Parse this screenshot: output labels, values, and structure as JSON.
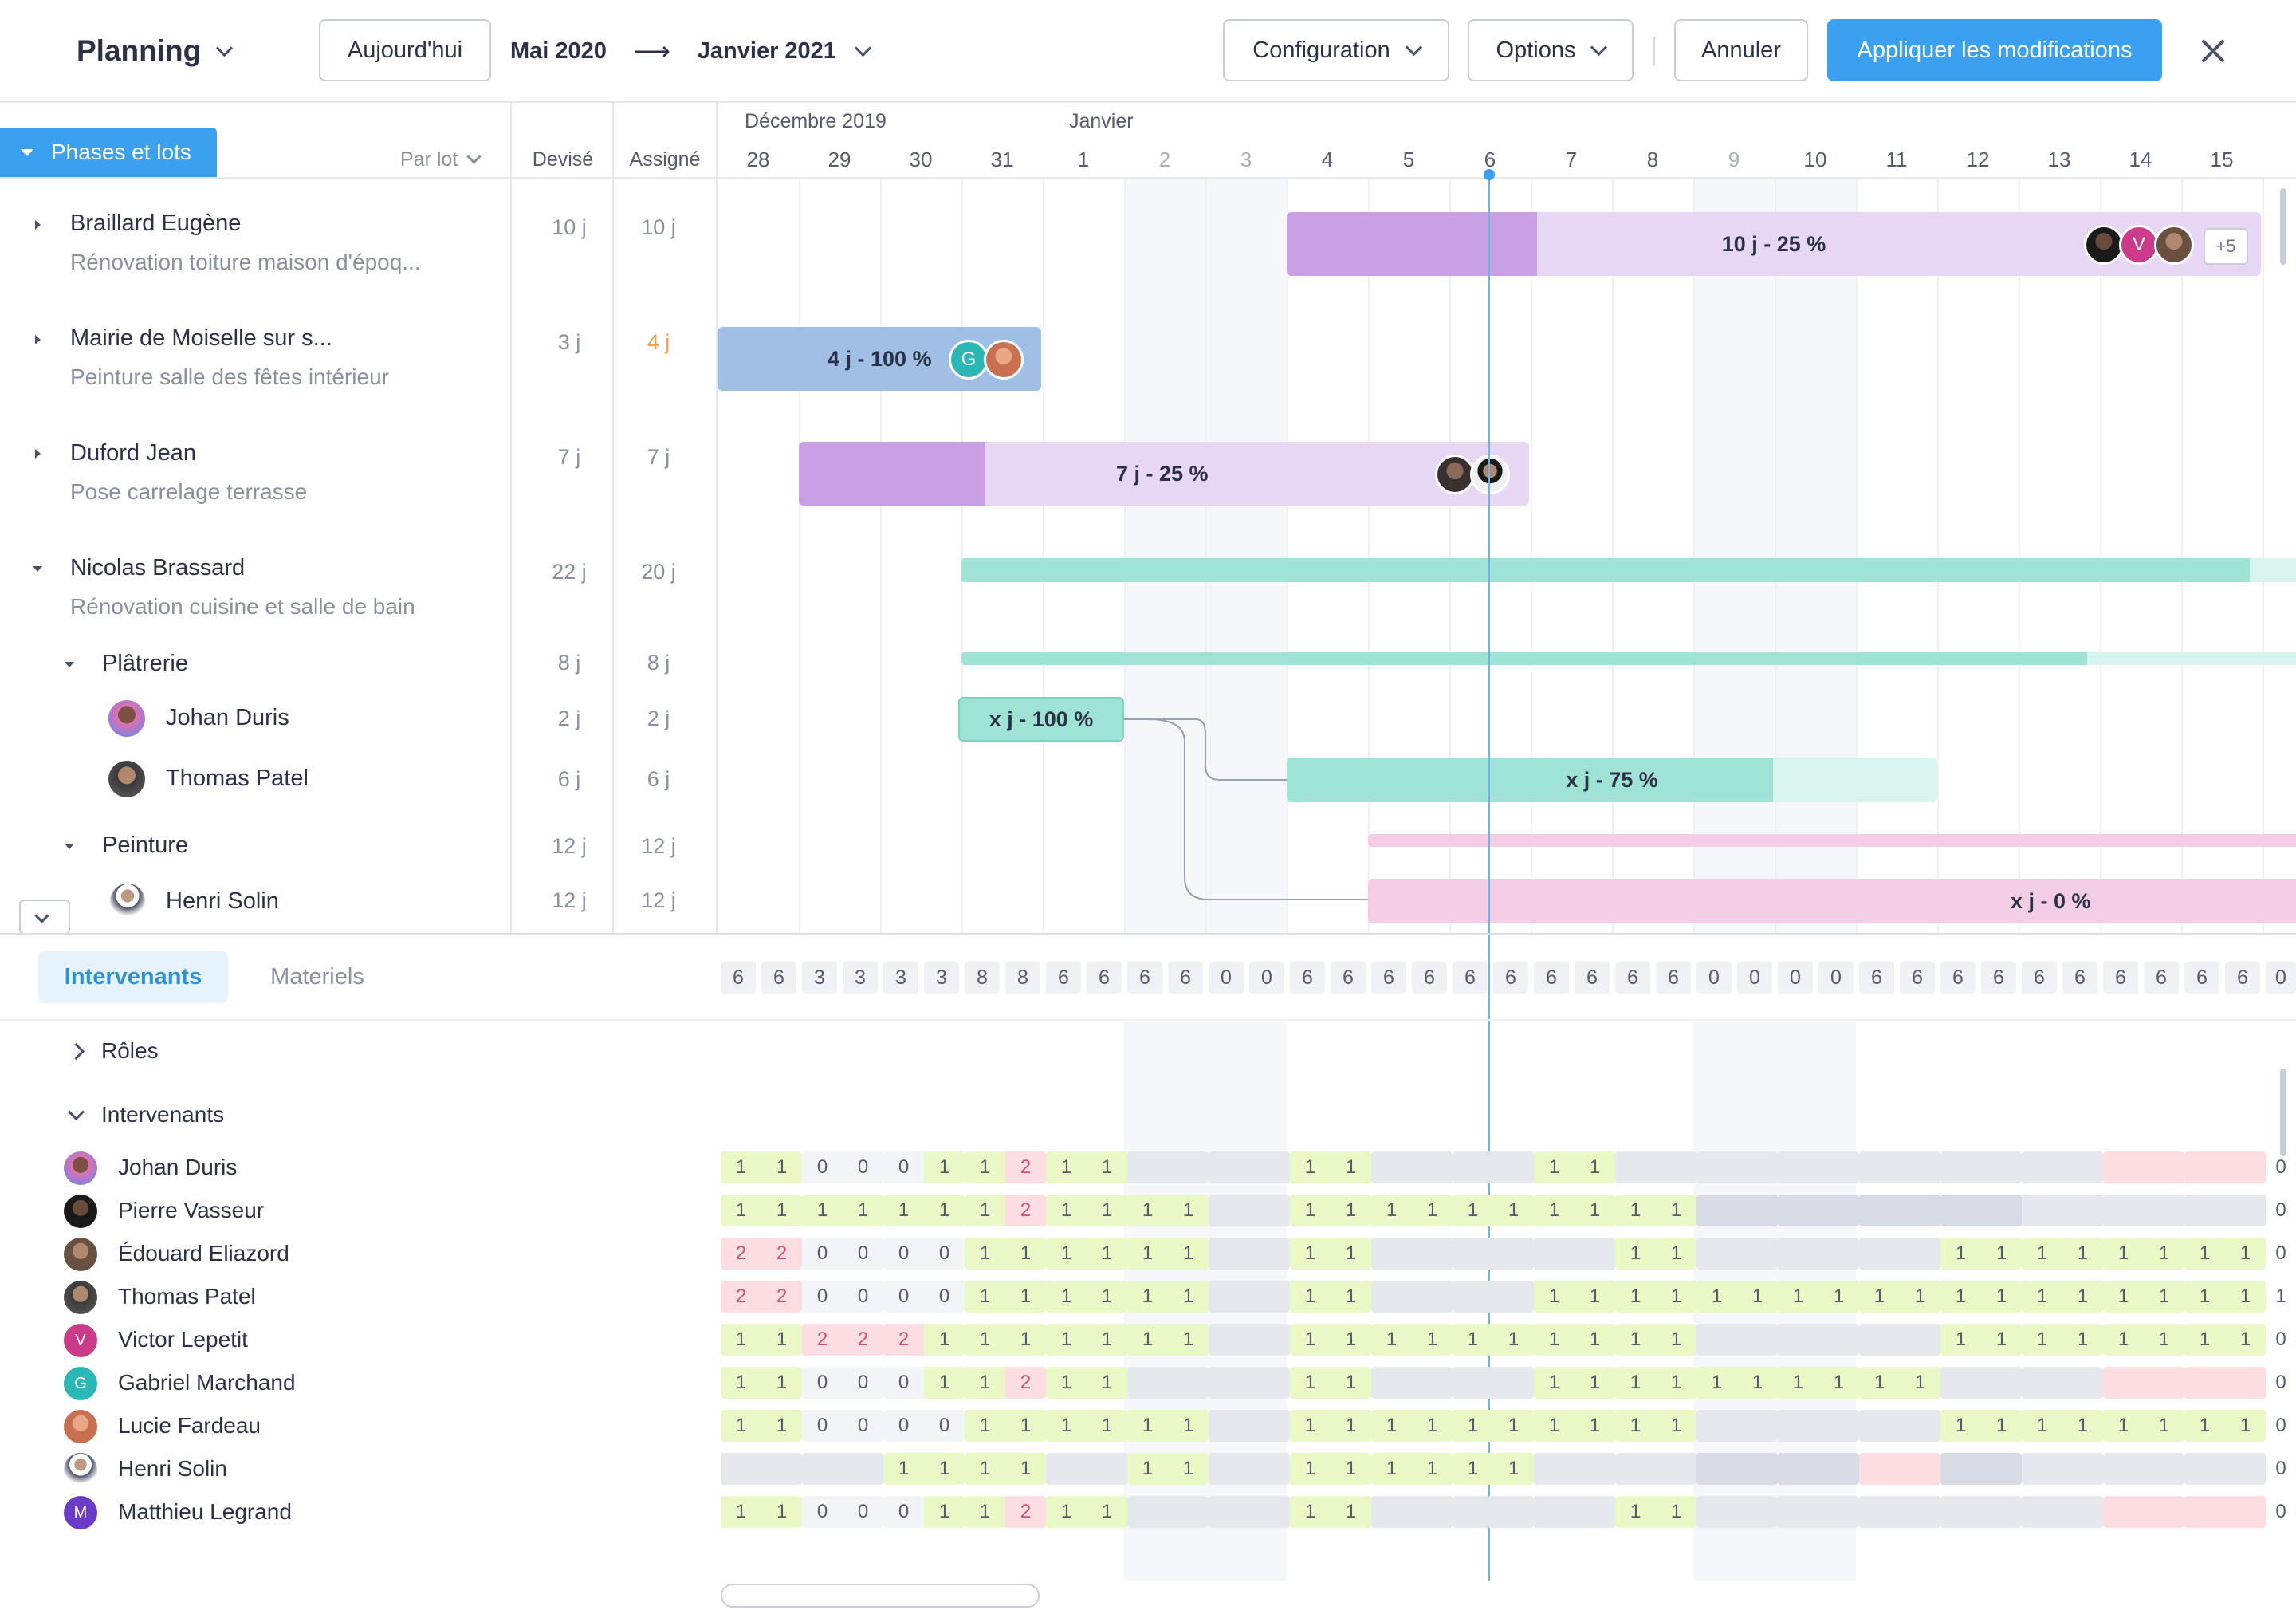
{
  "toolbar": {
    "title": "Planning",
    "today_label": "Aujourd'hui",
    "range_start": "Mai 2020",
    "range_arrow": "⟶",
    "range_end": "Janvier 2021",
    "configuration_label": "Configuration",
    "options_label": "Options",
    "cancel_label": "Annuler",
    "apply_label": "Appliquer les modifications",
    "close_icon": "close-icon"
  },
  "left_header": {
    "phases_button": "Phases et lots",
    "group_by": "Par lot",
    "col_estimated": "Devisé",
    "col_assigned": "Assigné"
  },
  "timeline": {
    "month_1": "Décembre 2019",
    "month_2": "Janvier",
    "days": [
      "28",
      "29",
      "30",
      "31",
      "1",
      "2",
      "3",
      "4",
      "5",
      "6",
      "7",
      "8",
      "9",
      "10",
      "11",
      "12",
      "13",
      "14",
      "15"
    ]
  },
  "rows": [
    {
      "title": "Braillard Eugène",
      "subtitle": "Rénovation toiture maison d'époq...",
      "estimated": "10 j",
      "assigned": "10 j"
    },
    {
      "title": "Mairie de Moiselle sur s...",
      "subtitle": "Peinture salle des fêtes intérieur",
      "estimated": "3 j",
      "assigned": "4 j"
    },
    {
      "title": "Duford Jean",
      "subtitle": "Pose carrelage terrasse",
      "estimated": "7 j",
      "assigned": "7 j"
    },
    {
      "title": "Nicolas Brassard",
      "subtitle": "Rénovation cuisine et salle de bain",
      "estimated": "22 j",
      "assigned": "20 j"
    }
  ],
  "subrows": [
    {
      "title": "Plâtrerie",
      "estimated": "8 j",
      "assigned": "8 j"
    },
    {
      "title": "Johan Duris",
      "estimated": "2 j",
      "assigned": "2 j"
    },
    {
      "title": "Thomas Patel",
      "estimated": "6 j",
      "assigned": "6 j"
    },
    {
      "title": "Peinture",
      "estimated": "12 j",
      "assigned": "12 j"
    },
    {
      "title": "Henri Solin",
      "estimated": "12 j",
      "assigned": "12 j"
    }
  ],
  "bars": {
    "braillard": "10 j - 25 %",
    "braillard_more": "+5",
    "braillard_avatar_initial": "V",
    "mairie": "4 j - 100 %",
    "mairie_avatar_initial": "G",
    "duford": "7 j - 25 %",
    "johan": "x j - 100 %",
    "thomas": "x j - 75 %",
    "henri": "x j - 0 %"
  },
  "bottom": {
    "tab_workers": "Intervenants",
    "tab_materials": "Materiels",
    "roles_label": "Rôles",
    "workers_group_label": "Intervenants",
    "totals": [
      "6",
      "6",
      "3",
      "3",
      "3",
      "3",
      "8",
      "8",
      "6",
      "6",
      "6",
      "6",
      "0",
      "0",
      "6",
      "6",
      "6",
      "6",
      "6",
      "6",
      "6",
      "6",
      "6",
      "6",
      "0",
      "0",
      "0",
      "0",
      "6",
      "6",
      "6",
      "6",
      "6",
      "6",
      "6",
      "6",
      "6",
      "6",
      "0"
    ],
    "workers": [
      {
        "name": "Johan Duris",
        "initial": ""
      },
      {
        "name": "Pierre Vasseur",
        "initial": ""
      },
      {
        "name": "Édouard Eliazord",
        "initial": ""
      },
      {
        "name": "Thomas Patel",
        "initial": ""
      },
      {
        "name": "Victor Lepetit",
        "initial": "V"
      },
      {
        "name": "Gabriel Marchand",
        "initial": "G"
      },
      {
        "name": "Lucie Fardeau",
        "initial": ""
      },
      {
        "name": "Henri Solin",
        "initial": ""
      },
      {
        "name": "Matthieu Legrand",
        "initial": "M"
      }
    ],
    "grid": [
      [
        "1",
        "1",
        "0",
        "0",
        "0",
        "1",
        "1",
        "2",
        "1",
        "1",
        "",
        "",
        "",
        "",
        "1",
        "1",
        "",
        "",
        "",
        "",
        "1",
        "1",
        "",
        "",
        "",
        "",
        "",
        "",
        "",
        "",
        "",
        "",
        "",
        "",
        "",
        "",
        "",
        "",
        "0"
      ],
      [
        "1",
        "1",
        "1",
        "1",
        "1",
        "1",
        "1",
        "2",
        "1",
        "1",
        "1",
        "1",
        "",
        "",
        "1",
        "1",
        "1",
        "1",
        "1",
        "1",
        "1",
        "1",
        "1",
        "1",
        "",
        "",
        "",
        "",
        "",
        "",
        "",
        "",
        "",
        "",
        "",
        "",
        "",
        "",
        "0"
      ],
      [
        "2",
        "2",
        "0",
        "0",
        "0",
        "0",
        "1",
        "1",
        "1",
        "1",
        "1",
        "1",
        "",
        "",
        "1",
        "1",
        "",
        "",
        "",
        "",
        "",
        "",
        "1",
        "1",
        "",
        "",
        "",
        "",
        "",
        "",
        "1",
        "1",
        "1",
        "1",
        "1",
        "1",
        "1",
        "1",
        "0"
      ],
      [
        "2",
        "2",
        "0",
        "0",
        "0",
        "0",
        "1",
        "1",
        "1",
        "1",
        "1",
        "1",
        "",
        "",
        "1",
        "1",
        "",
        "",
        "",
        "",
        "1",
        "1",
        "1",
        "1",
        "1",
        "1",
        "1",
        "1",
        "1",
        "1",
        "1",
        "1",
        "1",
        "1",
        "1",
        "1",
        "1",
        "1",
        "1"
      ],
      [
        "1",
        "1",
        "2",
        "2",
        "2",
        "1",
        "1",
        "1",
        "1",
        "1",
        "1",
        "1",
        "",
        "",
        "1",
        "1",
        "1",
        "1",
        "1",
        "1",
        "1",
        "1",
        "1",
        "1",
        "",
        "",
        "",
        "",
        "",
        "",
        "1",
        "1",
        "1",
        "1",
        "1",
        "1",
        "1",
        "1",
        "0"
      ],
      [
        "1",
        "1",
        "0",
        "0",
        "0",
        "1",
        "1",
        "2",
        "1",
        "1",
        "",
        "",
        "",
        "",
        "1",
        "1",
        "",
        "",
        "",
        "",
        "1",
        "1",
        "1",
        "1",
        "1",
        "1",
        "1",
        "1",
        "1",
        "1",
        "",
        "",
        "",
        "",
        "",
        "",
        "",
        "",
        "0"
      ],
      [
        "1",
        "1",
        "0",
        "0",
        "0",
        "0",
        "1",
        "1",
        "1",
        "1",
        "1",
        "1",
        "",
        "",
        "1",
        "1",
        "1",
        "1",
        "1",
        "1",
        "1",
        "1",
        "1",
        "1",
        "",
        "",
        "",
        "",
        "",
        "",
        "1",
        "1",
        "1",
        "1",
        "1",
        "1",
        "1",
        "1",
        "0"
      ],
      [
        "",
        "",
        "",
        "",
        "1",
        "1",
        "1",
        "1",
        "",
        "",
        "1",
        "1",
        "",
        "",
        "1",
        "1",
        "1",
        "1",
        "1",
        "1",
        "",
        "",
        "",
        "",
        "",
        "",
        "",
        "",
        "",
        "",
        "",
        "",
        "",
        "",
        "",
        "",
        "",
        "",
        "0"
      ],
      [
        "1",
        "1",
        "0",
        "0",
        "0",
        "1",
        "1",
        "2",
        "1",
        "1",
        "",
        "",
        "",
        "",
        "1",
        "1",
        "",
        "",
        "",
        "",
        "",
        "",
        "1",
        "1",
        "",
        "",
        "",
        "",
        "",
        "",
        "",
        "",
        "",
        "",
        "",
        "",
        "",
        "",
        "0"
      ]
    ]
  },
  "colors": {
    "primary": "#3ba0f0",
    "purple_dark": "#c9a0e4",
    "purple_light": "#e8d7f4",
    "blue_bar": "#a1bfe4",
    "teal": "#9fe3d5",
    "teal_light": "#d7f4ee",
    "pink": "#f3cde6",
    "today_line": "#6fb2ea",
    "cell_ok": "#eaf8c6",
    "cell_over": "#fbdde2",
    "cell_empty": "#e6e8ee",
    "cell_off": "#d8dae6"
  }
}
